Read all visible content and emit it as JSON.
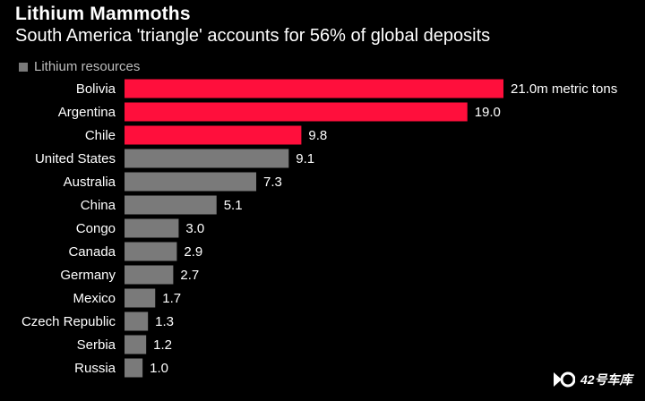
{
  "chart_data": {
    "type": "bar",
    "orientation": "horizontal",
    "title": "Lithium Mammoths",
    "subtitle": "South America 'triangle' accounts for 56% of global deposits",
    "legend": [
      {
        "label": "Lithium resources",
        "color": "#7a7a7a"
      }
    ],
    "unit_suffix": "m metric tons",
    "categories": [
      "Bolivia",
      "Argentina",
      "Chile",
      "United States",
      "Australia",
      "China",
      "Congo",
      "Canada",
      "Germany",
      "Mexico",
      "Czech Republic",
      "Serbia",
      "Russia"
    ],
    "values": [
      21.0,
      19.0,
      9.8,
      9.1,
      7.3,
      5.1,
      3.0,
      2.9,
      2.7,
      1.7,
      1.3,
      1.2,
      1.0
    ],
    "value_labels": [
      "21.0m metric tons",
      "19.0",
      "9.8",
      "9.1",
      "7.3",
      "5.1",
      "3.0",
      "2.9",
      "2.7",
      "1.7",
      "1.3",
      "1.2",
      "1.0"
    ],
    "highlighted": [
      "Bolivia",
      "Argentina",
      "Chile"
    ],
    "xlim": [
      0,
      21.0
    ],
    "colors": {
      "highlight": "#ff0f3c",
      "default": "#7a7a7a",
      "label": "#ffffff",
      "legend_text": "#bdbdbd"
    }
  },
  "watermark": {
    "text": "42号车库"
  }
}
